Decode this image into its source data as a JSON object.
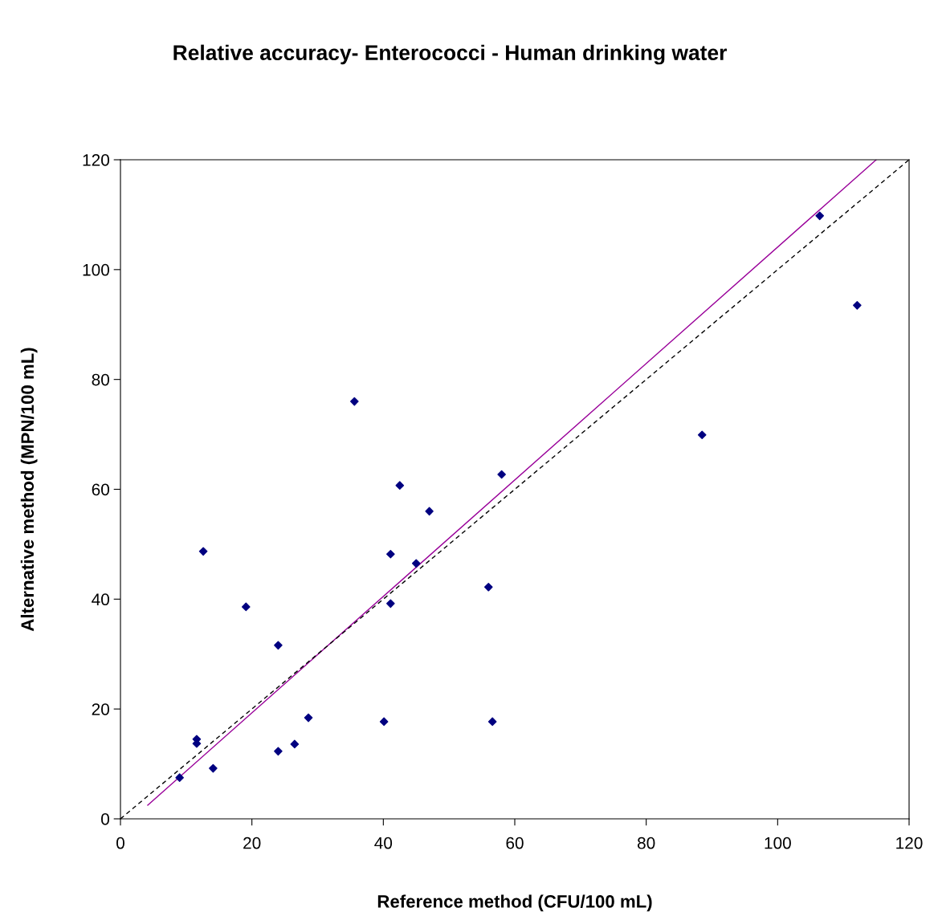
{
  "chart_data": {
    "type": "scatter",
    "title": "Relative accuracy- Enterococci - Human drinking water",
    "xlabel": "Reference method (CFU/100 mL)",
    "ylabel": "Alternative method (MPN/100 mL)",
    "series": [
      {
        "color": "#000080",
        "marker": "diamond",
        "x": [
          9.0,
          11.6,
          11.6,
          12.6,
          14.1,
          19.1,
          24.0,
          24.0,
          26.5,
          28.6,
          35.6,
          40.1,
          41.1,
          41.1,
          42.5,
          45.0,
          47.0,
          56.0,
          56.6,
          58.0,
          88.5,
          106.4,
          112.1
        ],
        "values": [
          7.5,
          14.5,
          13.7,
          48.7,
          9.2,
          38.6,
          31.6,
          12.3,
          13.6,
          18.4,
          76.0,
          17.7,
          48.2,
          39.2,
          60.7,
          46.5,
          56.0,
          42.2,
          17.7,
          62.7,
          69.9,
          109.8,
          93.5
        ]
      },
      {
        "type": "line",
        "color": "#990099",
        "marker": "none",
        "line_style": "solid",
        "x": [
          4.15,
          115.0
        ],
        "values": [
          2.5,
          120
        ]
      },
      {
        "type": "line",
        "color": "#000000",
        "marker": "none",
        "line_style": "dashed",
        "x": [
          0,
          120
        ],
        "values": [
          0,
          120
        ]
      }
    ],
    "xlim": [
      0,
      120
    ],
    "ylim": [
      0,
      120
    ],
    "xticks": [
      0,
      20,
      40,
      60,
      80,
      100,
      120
    ],
    "yticks": [
      0,
      20,
      40,
      60,
      80,
      100,
      120
    ],
    "grid": false,
    "legend": false
  }
}
